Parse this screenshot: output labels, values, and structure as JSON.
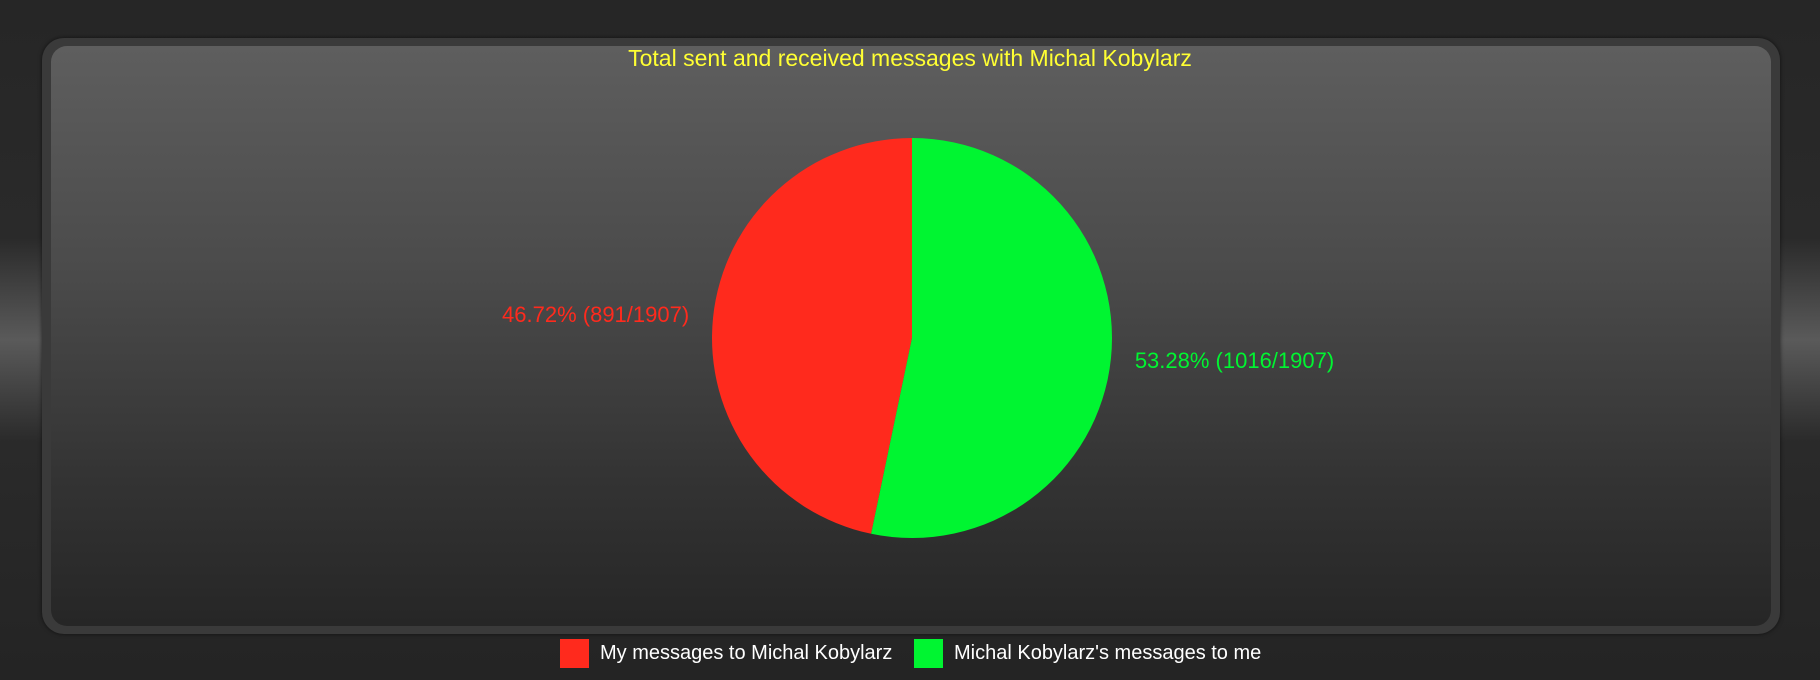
{
  "chart_data": {
    "type": "pie",
    "title": "Total sent and received messages with Michal Kobylarz",
    "slices": [
      {
        "name": "My messages to Michal Kobylarz",
        "value": 891,
        "total": 1907,
        "percent": 46.72,
        "label": "46.72% (891/1907)",
        "color": "#ff2a1d"
      },
      {
        "name": "Michal Kobylarz's messages to me",
        "value": 1016,
        "total": 1907,
        "percent": 53.28,
        "label": "53.28% (1016/1907)",
        "color": "#00f531"
      }
    ],
    "legend_position": "bottom",
    "title_color": "#ffff33"
  }
}
